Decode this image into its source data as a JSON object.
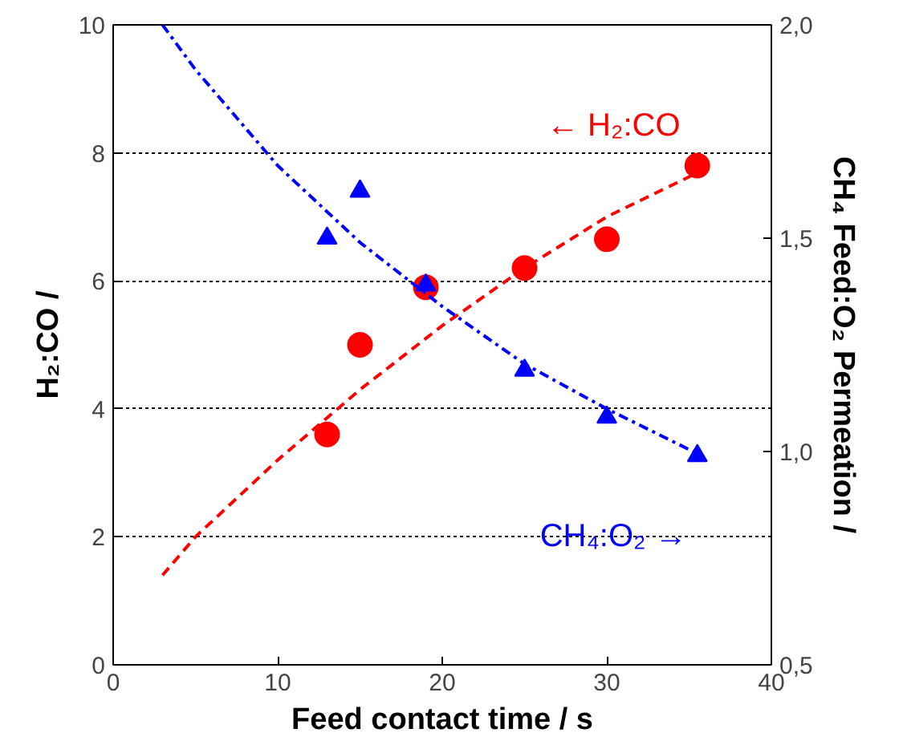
{
  "chart_data": {
    "type": "scatter",
    "xlabel": "Feed contact time / s",
    "ylabel": "H₂:CO /",
    "y2label": "CH₄ Feed:O₂ Permeation /",
    "xlim": [
      0,
      40
    ],
    "xticks": [
      0,
      10,
      20,
      30,
      40
    ],
    "ylim": [
      0,
      10
    ],
    "yticks": [
      0,
      2,
      4,
      6,
      8,
      10
    ],
    "y2lim": [
      0.5,
      2.0
    ],
    "y2ticks": [
      {
        "value": 0.5,
        "label": "0,5"
      },
      {
        "value": 1.0,
        "label": "1,0"
      },
      {
        "value": 1.5,
        "label": "1,5"
      },
      {
        "value": 2.0,
        "label": "2,0"
      }
    ],
    "grid": "y",
    "series": [
      {
        "marker": "circle",
        "color": "#ff0000",
        "x": [
          13,
          15,
          19,
          25,
          30,
          35.5
        ],
        "values": [
          3.6,
          5.0,
          5.9,
          6.2,
          6.65,
          7.8
        ]
      },
      {
        "marker": "triangle",
        "color": "#0000ff",
        "axis": "y2",
        "x": [
          13,
          15,
          19,
          25,
          30,
          35.5
        ],
        "values": [
          1.5,
          1.61,
          1.39,
          1.19,
          1.08,
          0.99
        ]
      },
      {
        "type": "line",
        "line_style": "dashed",
        "color": "#ff0000",
        "x": [
          3,
          5,
          10,
          15,
          20,
          25,
          30,
          36
        ],
        "values": [
          1.4,
          2.0,
          3.2,
          4.3,
          5.3,
          6.2,
          7.0,
          7.75
        ]
      },
      {
        "type": "line",
        "line_style": "dashdot",
        "color": "#0000ff",
        "axis": "y2",
        "x": [
          3,
          5,
          10,
          15,
          20,
          25,
          30,
          35.5
        ],
        "values": [
          2.0,
          1.895,
          1.67,
          1.49,
          1.34,
          1.205,
          1.1,
          0.995
        ]
      }
    ],
    "annotations": [
      "← H₂:CO",
      "CH₄:O₂ →"
    ]
  }
}
